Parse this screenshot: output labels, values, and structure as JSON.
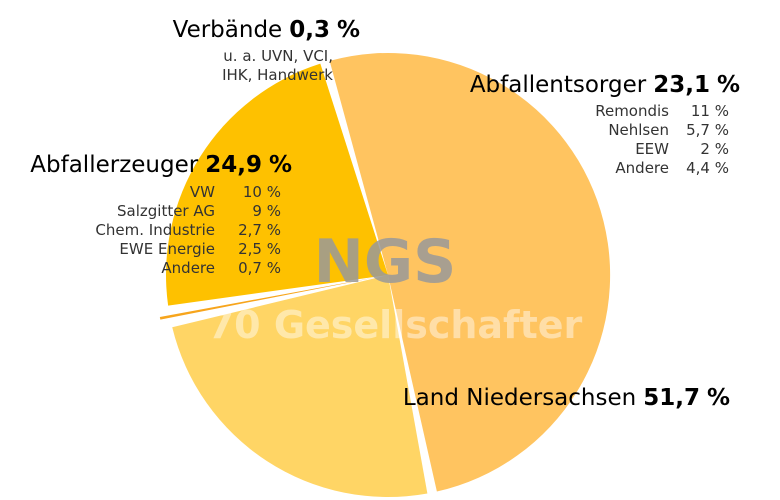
{
  "chart_data": {
    "type": "pie",
    "watermark": {
      "line1": "NGS",
      "line2": "70 Gesellschafter"
    },
    "unit": "%",
    "slices": [
      {
        "key": "land",
        "name": "Land Niedersachsen",
        "value_label": "51,7",
        "value": 51.7,
        "color": "#FFC460",
        "breakdown": []
      },
      {
        "key": "erzeuger",
        "name": "Abfallerzeuger",
        "value_label": "24,9",
        "value": 24.9,
        "color": "#FFD565",
        "breakdown": [
          {
            "name": "VW",
            "value_label": "10 %"
          },
          {
            "name": "Salzgitter AG",
            "value_label": "9 %"
          },
          {
            "name": "Chem. Industrie",
            "value_label": "2,7 %"
          },
          {
            "name": "EWE Energie",
            "value_label": "2,5 %"
          },
          {
            "name": "Andere",
            "value_label": "0,7 %"
          }
        ]
      },
      {
        "key": "verbaende",
        "name": "Verbände",
        "value_label": "0,3",
        "value": 0.3,
        "color": "#F7A51C",
        "note": [
          "u. a. UVN, VCI,",
          "IHK, Handwerk"
        ],
        "breakdown": []
      },
      {
        "key": "entsorger",
        "name": "Abfallentsorger",
        "value_label": "23,1",
        "value": 23.1,
        "color": "#FEC100",
        "breakdown": [
          {
            "name": "Remondis",
            "value_label": "11 %"
          },
          {
            "name": "Nehlsen",
            "value_label": "5,7 %"
          },
          {
            "name": "EEW",
            "value_label": "2 %"
          },
          {
            "name": "Andere",
            "value_label": "4,4 %"
          }
        ]
      }
    ]
  }
}
